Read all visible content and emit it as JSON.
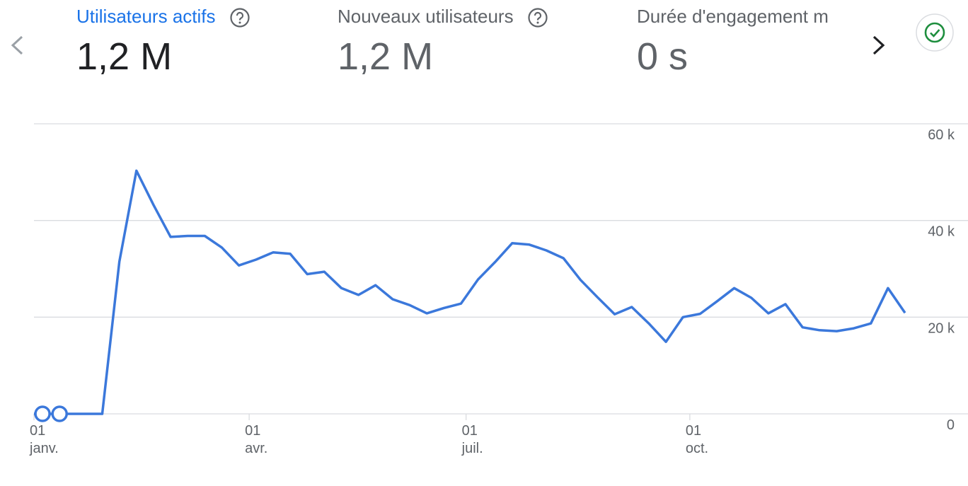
{
  "header": {
    "metrics": [
      {
        "label": "Utilisateurs actifs",
        "value": "1,2 M",
        "selected": true
      },
      {
        "label": "Nouveaux utilisateurs",
        "value": "1,2 M",
        "selected": false
      },
      {
        "label": "Durée d'engagement m",
        "value": "0 s",
        "selected": false
      }
    ],
    "help_icon": "help-circle-icon",
    "status_icon": "check-circle-icon"
  },
  "colors": {
    "accent": "#1a73e8",
    "line": "#3b78db",
    "status": "#1e8e3e",
    "grid": "#dadce0"
  },
  "chart_data": {
    "type": "line",
    "title": "",
    "xlabel": "",
    "ylabel": "",
    "ylim": [
      0,
      60000
    ],
    "y_ticks": [
      {
        "value": 60000,
        "label": "60 k"
      },
      {
        "value": 40000,
        "label": "40 k"
      },
      {
        "value": 20000,
        "label": "20 k"
      },
      {
        "value": 0,
        "label": "0"
      }
    ],
    "x_ticks": [
      {
        "x": 0,
        "day": "01",
        "month": "janv."
      },
      {
        "x": 12.6,
        "day": "01",
        "month": "avr."
      },
      {
        "x": 25.3,
        "day": "01",
        "month": "juil."
      },
      {
        "x": 38.4,
        "day": "01",
        "month": "oct."
      }
    ],
    "grid": true,
    "x_period": "weekly",
    "series": [
      {
        "x": [
          0,
          1,
          2,
          3,
          4,
          5,
          6,
          7,
          8,
          9,
          10,
          11,
          12,
          13,
          14,
          15,
          16,
          17,
          18,
          19,
          20,
          21,
          22,
          23,
          24,
          25,
          26,
          27,
          28,
          29,
          30,
          31,
          32,
          33,
          34,
          35,
          36,
          37,
          38,
          39,
          40,
          41,
          42,
          43,
          44,
          45,
          46,
          47,
          48,
          49,
          50,
          51
        ],
        "values": [
          0,
          0,
          0,
          0,
          0,
          31500,
          50300,
          43200,
          36600,
          36800,
          36800,
          34400,
          30700,
          31900,
          33400,
          33100,
          28900,
          29400,
          26000,
          24600,
          26600,
          23700,
          22500,
          20800,
          21900,
          22800,
          27800,
          31400,
          35300,
          35000,
          33800,
          32200,
          27700,
          24100,
          20600,
          22100,
          18700,
          14900,
          20000,
          20700,
          23300,
          26000,
          24000,
          20800,
          22700,
          17900,
          17300,
          17100,
          17700,
          18700,
          26000,
          20900
        ]
      }
    ],
    "highlight_points": [
      {
        "x": 0.5,
        "y": 0
      },
      {
        "x": 1.5,
        "y": 0
      }
    ]
  }
}
